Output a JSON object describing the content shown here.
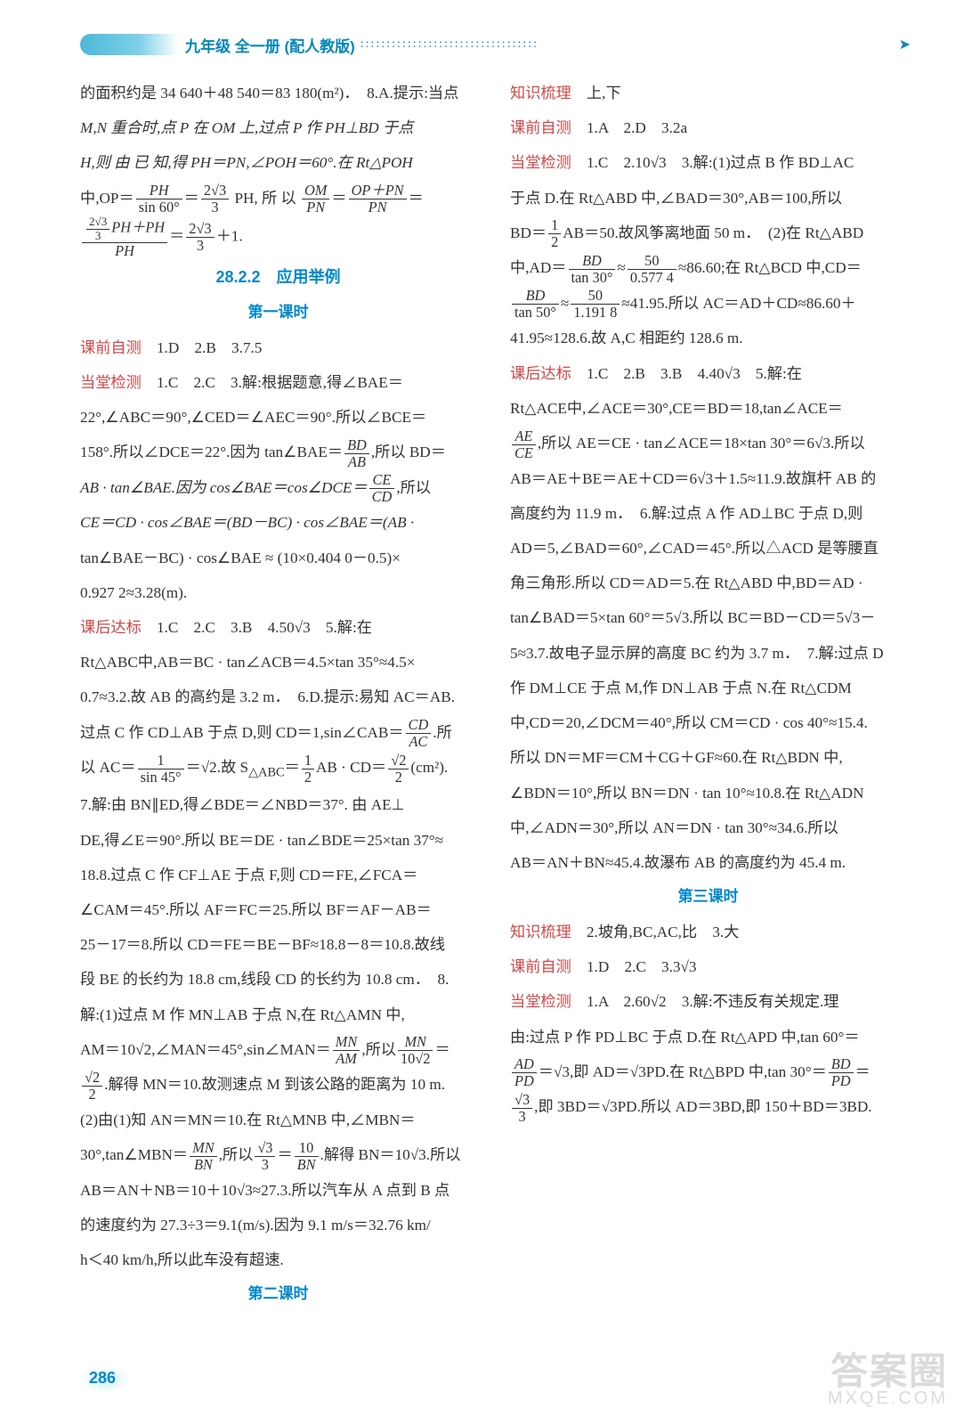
{
  "header": {
    "title": "九年级 全一册 (配人教版)",
    "dots": "::::::::::::::::::::::::::::::::::"
  },
  "page_number": "286",
  "watermark": {
    "line1": "答案圈",
    "line2": "MXQE.COM"
  },
  "colors": {
    "accent_blue": "#0088cc",
    "accent_red": "#d04848",
    "header_teal": "#4db8d8",
    "text": "#333333",
    "bg": "#ffffff"
  },
  "sections": {
    "s2822_title": "28.2.2　应用举例",
    "lesson1": "第一课时",
    "lesson2": "第二课时",
    "lesson3": "第三课时"
  },
  "labels": {
    "zhishi": "知识梳理",
    "keqian": "课前自测",
    "dangtang": "当堂检测",
    "kehou": "课后达标"
  },
  "col1": {
    "p1": "的面积约是 34 640＋48 540＝83 180(m²)．　8.A.提示:当点",
    "p2a": "M,N 重合时,点 P 在 OM 上,过点 P 作 PH⊥BD 于点",
    "p2b": "H,则 由 已 知,得 PH＝PN,∠POH＝60°.在 Rt△POH",
    "p3": "中,OP＝",
    "p3a": "PH",
    "p3b": "sin 60°",
    "p3c": "2√3",
    "p3d": "3",
    "p3e": " PH, 所 以 ",
    "p3f": "OM",
    "p3g": "PN",
    "p3h": "OP＋PN",
    "p3i": "PN",
    "p4a": "2√3",
    "p4b": "3",
    "p4c": "PH＋PH",
    "p4d": "PH",
    "p4e": "2√3",
    "p4f": "3",
    "p4g": "＋1.",
    "kq1": "　1.D　2.B　3.7.5",
    "dt1": "　1.C　2.C　3.解:根据题意,得∠BAE＝",
    "dt2": "22°,∠ABC＝90°,∠CED＝∠AEC＝90°.所以∠BCE＝",
    "dt3": "158°.所以∠DCE＝22°.因为 tan∠BAE＝",
    "dt3a": "BD",
    "dt3b": "AB",
    "dt3c": ",所以 BD＝",
    "dt4": "AB · tan∠BAE.因为 cos∠BAE＝cos∠DCE＝",
    "dt4a": "CE",
    "dt4b": "CD",
    "dt4c": ",所以",
    "dt5": "CE＝CD · cos∠BAE＝(BD－BC) · cos∠BAE＝(AB ·",
    "dt6": "tan∠BAE－BC) · cos∠BAE ≈ (10×0.404 0－0.5)×",
    "dt7": "0.927 2≈3.28(m).",
    "kh1": "　1.C　2.C　3.B　4.50√3　5.解:在",
    "kh2": "Rt△ABC中,AB＝BC · tan∠ACB＝4.5×tan 35°≈4.5×",
    "kh3": "0.7≈3.2.故 AB 的高约是 3.2 m．　6.D.提示:易知 AC＝AB.",
    "kh4": "过点 C 作 CD⊥AB 于点 D,则 CD＝1,sin∠CAB＝",
    "kh4a": "CD",
    "kh4b": "AC",
    "kh4c": ".所",
    "kh5": "以 AC＝",
    "kh5a": "1",
    "kh5b": "sin 45°",
    "kh5c": "＝√2.故 S",
    "kh5d": "△ABC",
    "kh5e": "＝",
    "kh5f": "1",
    "kh5g": "2",
    "kh5h": "AB · CD＝",
    "kh5i": "√2",
    "kh5j": "2",
    "kh5k": "(cm²).",
    "kh6": "7.解:由 BN∥ED,得∠BDE＝∠NBD＝37°. 由 AE⊥",
    "kh7": "DE,得∠E＝90°.所以 BE＝DE · tan∠BDE＝25×tan 37°≈",
    "kh8": "18.8.过点 C 作 CF⊥AE 于点 F,则 CD＝FE,∠FCA＝",
    "kh9": "∠CAM＝45°.所以 AF＝FC＝25.所以 BF＝AF－AB＝",
    "kh10": "25－17＝8.所以 CD＝FE＝BE－BF≈18.8－8＝10.8.故线",
    "kh11": "段 BE 的长约为 18.8 cm,线段 CD 的长约为 10.8 cm．　8.",
    "kh12": "解:(1)过点 M 作 MN⊥AB 于点 N,在 Rt△AMN 中,",
    "kh13": "AM＝10√2,∠MAN＝45°,sin∠MAN＝",
    "kh13a": "MN",
    "kh13b": "AM",
    "kh13c": ",所以",
    "kh13d": "MN",
    "kh13e": "10√2",
    "kh13f": "＝",
    "kh14a": "√2",
    "kh14b": "2",
    "kh14c": ".解得 MN＝10.故测速点 M 到该公路的距离为 10 m.",
    "kh15": "(2)由(1)知 AN＝MN＝10.在 Rt△MNB 中,∠MBN＝",
    "kh16": "30°,tan∠MBN＝",
    "kh16a": "MN",
    "kh16b": "BN",
    "kh16c": ",所以",
    "kh16d": "√3",
    "kh16e": "3",
    "kh16f": "＝",
    "kh16g": "10",
    "kh16h": "BN",
    "kh16i": ".解得 BN＝10√3.所以"
  },
  "col2": {
    "p1": "AB＝AN＋NB＝10＋10√3≈27.3.所以汽车从 A 点到 B 点",
    "p2": "的速度约为 27.3÷3＝9.1(m/s).因为 9.1 m/s＝32.76 km/",
    "p3": "h＜40 km/h,所以此车没有超速.",
    "zs2": "　上,下",
    "kq2": "　1.A　2.D　3.2a",
    "dt2_1": "　1.C　2.10√3　3.解:(1)过点 B 作 BD⊥AC",
    "dt2_2": "于点 D.在 Rt△ABD 中,∠BAD＝30°,AB＝100,所以",
    "dt2_3": "BD＝",
    "dt2_3a": "1",
    "dt2_3b": "2",
    "dt2_3c": "AB＝50.故风筝离地面 50 m．　(2)在 Rt△ABD",
    "dt2_4": "中,AD＝",
    "dt2_4a": "BD",
    "dt2_4b": "tan 30°",
    "dt2_4c": "≈",
    "dt2_4d": "50",
    "dt2_4e": "0.577 4",
    "dt2_4f": "≈86.60;在 Rt△BCD 中,CD＝",
    "dt2_5a": "BD",
    "dt2_5b": "tan 50°",
    "dt2_5c": "≈",
    "dt2_5d": "50",
    "dt2_5e": "1.191 8",
    "dt2_5f": "≈41.95.所以 AC＝AD＋CD≈86.60＋",
    "dt2_6": "41.95≈128.6.故 A,C 相距约 128.6 m.",
    "kh2_1": "　1.C　2.B　3.B　4.40√3　5.解:在",
    "kh2_2": "Rt△ACE中,∠ACE＝30°,CE＝BD＝18,tan∠ACE＝",
    "kh2_3a": "AE",
    "kh2_3b": "CE",
    "kh2_3c": ",所以 AE＝CE · tan∠ACE＝18×tan 30°＝6√3.所以",
    "kh2_4": "AB＝AE＋BE＝AE＋CD＝6√3＋1.5≈11.9.故旗杆 AB 的",
    "kh2_5": "高度约为 11.9 m．　6.解:过点 A 作 AD⊥BC 于点 D,则",
    "kh2_6": "AD＝5,∠BAD＝60°,∠CAD＝45°.所以△ACD 是等腰直",
    "kh2_7": "角三角形.所以 CD＝AD＝5.在 Rt△ABD 中,BD＝AD ·",
    "kh2_8": "tan∠BAD＝5×tan 60°＝5√3.所以 BC＝BD－CD＝5√3－",
    "kh2_9": "5≈3.7.故电子显示屏的高度 BC 约为 3.7 m．　7.解:过点 D",
    "kh2_10": "作 DM⊥CE 于点 M,作 DN⊥AB 于点 N.在 Rt△CDM",
    "kh2_11": "中,CD＝20,∠DCM＝40°,所以 CM＝CD · cos 40°≈15.4.",
    "kh2_12": "所以 DN＝MF＝CM＋CG＋GF≈60.在 Rt△BDN 中,",
    "kh2_13": "∠BDN＝10°,所以 BN＝DN · tan 10°≈10.8.在 Rt△ADN",
    "kh2_14": "中,∠ADN＝30°,所以 AN＝DN · tan 30°≈34.6.所以",
    "kh2_15": "AB＝AN＋BN≈45.4.故瀑布 AB 的高度约为 45.4 m.",
    "zs3": "　2.坡角,BC,AC,比　3.大",
    "kq3": "　1.D　2.C　3.3√3",
    "dt3_1": "　1.A　2.60√2　3.解:不违反有关规定.理",
    "dt3_2": "由:过点 P 作 PD⊥BC 于点 D.在 Rt△APD 中,tan 60°＝",
    "dt3_3a": "AD",
    "dt3_3b": "PD",
    "dt3_3c": "＝√3,即 AD＝√3PD.在 Rt△BPD 中,tan 30°＝",
    "dt3_3d": "BD",
    "dt3_3e": "PD",
    "dt3_3f": "＝",
    "dt3_4a": "√3",
    "dt3_4b": "3",
    "dt3_4c": ",即 3BD＝√3PD.所以 AD＝3BD,即 150＋BD＝3BD."
  }
}
